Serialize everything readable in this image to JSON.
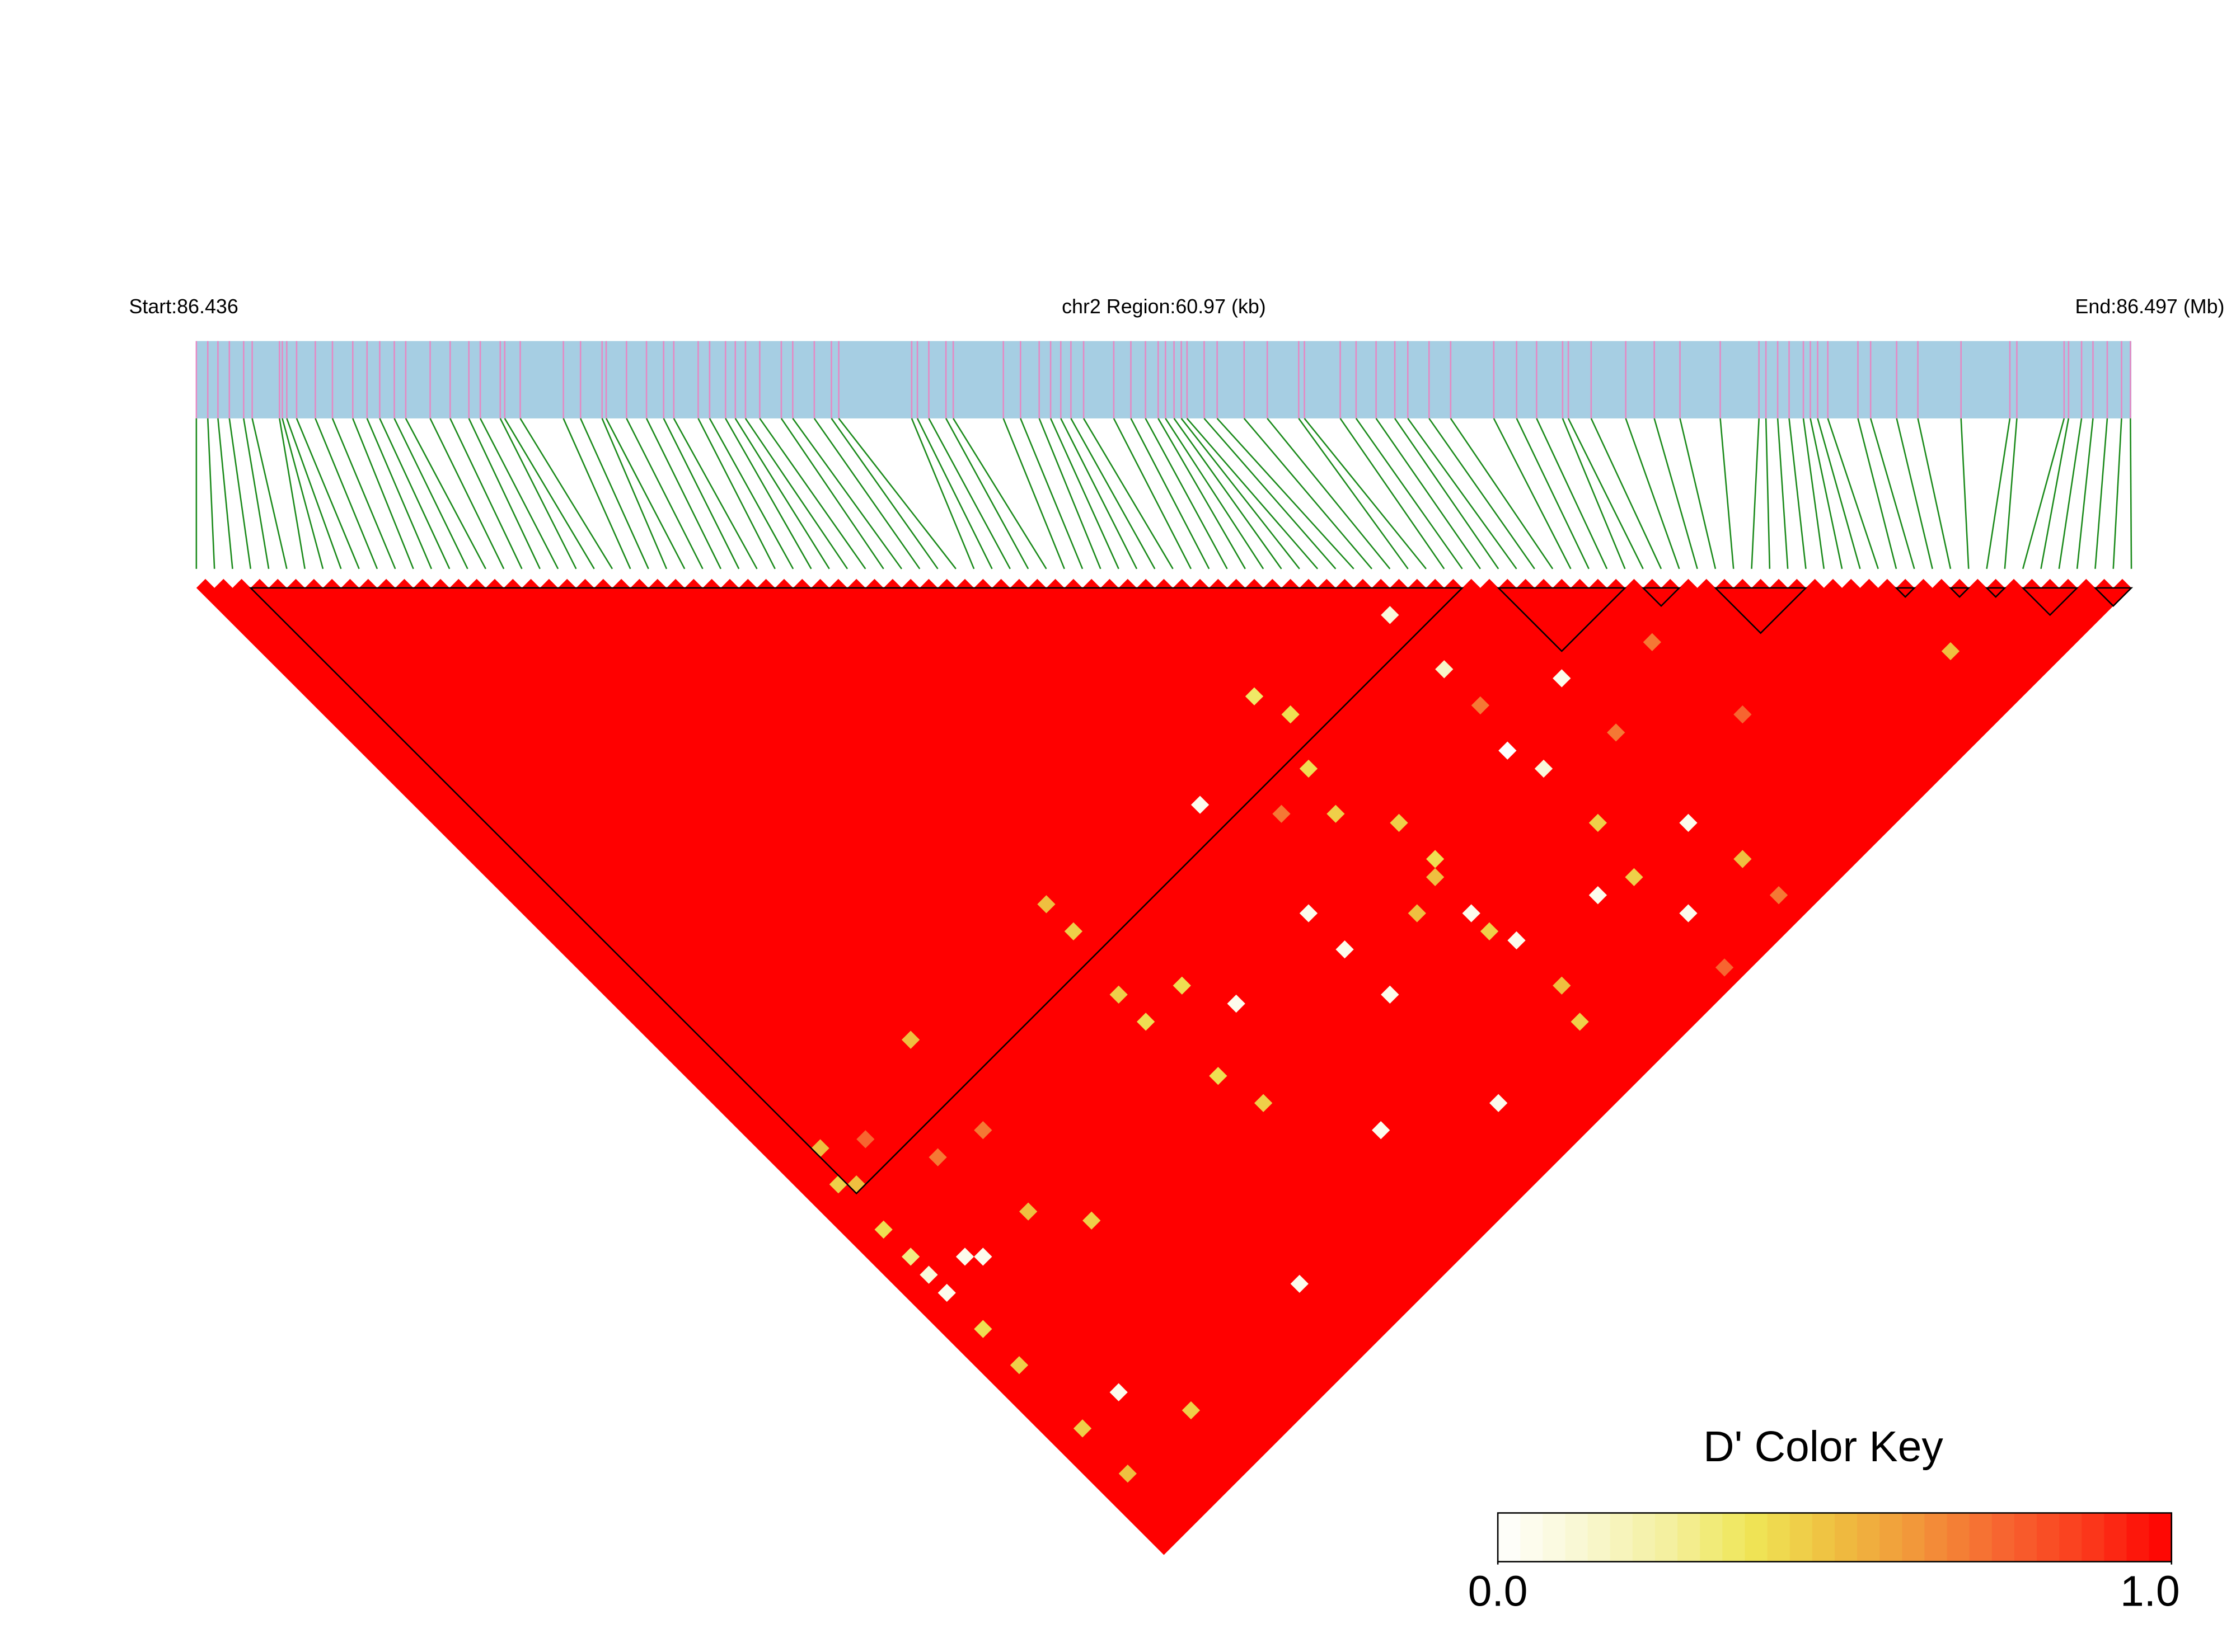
{
  "chart_data": {
    "type": "ld-heatmap",
    "start_label": "Start:86.436",
    "region_label": "chr2 Region:60.97 (kb)",
    "end_label": "End:86.497 (Mb)",
    "xlim": [
      86.436,
      86.497
    ],
    "track_color": "#a6cee3",
    "snp_color": "#e589c4",
    "connector_color": "#1a8a1a",
    "snp_positions": [
      86.436,
      86.43636,
      86.43668,
      86.43704,
      86.43749,
      86.43776,
      86.43862,
      86.43871,
      86.43885,
      86.43916,
      86.43975,
      86.44029,
      86.44093,
      86.44138,
      86.44178,
      86.44224,
      86.4426,
      86.44337,
      86.444,
      86.44459,
      86.44495,
      86.44558,
      86.44572,
      86.44621,
      86.44757,
      86.44811,
      86.44879,
      86.44892,
      86.44956,
      86.45019,
      86.45073,
      86.45105,
      86.45182,
      86.45218,
      86.45268,
      86.45299,
      86.45331,
      86.45376,
      86.45444,
      86.4548,
      86.45548,
      86.45602,
      86.45625,
      86.45855,
      86.45873,
      86.45909,
      86.45963,
      86.45986,
      86.46144,
      86.46198,
      86.46257,
      86.46293,
      86.46325,
      86.46357,
      86.46397,
      86.46492,
      86.46546,
      86.46592,
      86.46632,
      86.46655,
      86.46682,
      86.46705,
      86.46723,
      86.46777,
      86.46818,
      86.46903,
      86.46976,
      86.47075,
      86.47093,
      86.47206,
      86.47256,
      86.47319,
      86.47378,
      86.47419,
      86.47486,
      86.47554,
      86.4769,
      86.47762,
      86.47825,
      86.47907,
      86.47925,
      86.47997,
      86.48106,
      86.48196,
      86.48277,
      86.48404,
      86.48526,
      86.48548,
      86.48585,
      86.48621,
      86.48666,
      86.48688,
      86.48711,
      86.48743,
      86.48838,
      86.48878,
      86.4896,
      86.49027,
      86.49163,
      86.49317,
      86.49339,
      86.49488,
      86.49502,
      86.49543,
      86.49579,
      86.49624,
      86.49669,
      86.49697
    ],
    "cells": [
      {
        "i": 64,
        "j": 68,
        "value": 0.1
      },
      {
        "i": 70,
        "j": 81,
        "value": 0.05
      },
      {
        "i": 64,
        "j": 74,
        "value": 0.15
      },
      {
        "i": 63,
        "j": 82,
        "value": 0.0
      },
      {
        "i": 64,
        "j": 85,
        "value": 0.1
      },
      {
        "i": 52,
        "j": 65,
        "value": 0.35
      },
      {
        "i": 53,
        "j": 68,
        "value": 0.4
      },
      {
        "i": 43,
        "j": 68,
        "value": 0.05
      },
      {
        "i": 34,
        "j": 81,
        "value": 0.05
      },
      {
        "i": 32,
        "j": 77,
        "value": 0.4
      },
      {
        "i": 53,
        "j": 84,
        "value": 0.4
      },
      {
        "i": 43,
        "j": 89,
        "value": 0.05
      },
      {
        "i": 69,
        "j": 96,
        "value": 0.05
      },
      {
        "i": 70,
        "j": 101,
        "value": 0.5
      },
      {
        "i": 64,
        "j": 101,
        "value": 0.05
      },
      {
        "i": 93,
        "j": 101,
        "value": 0.5
      },
      {
        "i": 78,
        "j": 93,
        "value": 0.75
      },
      {
        "i": 70,
        "j": 105,
        "value": 0.7
      },
      {
        "i": 63,
        "j": 106,
        "value": 0.75
      },
      {
        "i": 52,
        "j": 101,
        "value": 0.45
      },
      {
        "i": 43,
        "j": 101,
        "value": 0.05
      },
      {
        "i": 35,
        "j": 96,
        "value": 0.05
      },
      {
        "i": 22,
        "j": 100,
        "value": 0.05
      },
      {
        "i": 14,
        "j": 65,
        "value": 0.5
      },
      {
        "i": 3,
        "j": 66,
        "value": 0.5
      },
      {
        "i": 2,
        "j": 69,
        "value": 0.45
      },
      {
        "i": 2,
        "j": 74,
        "value": 0.4
      },
      {
        "i": 2,
        "j": 77,
        "value": 0.3
      },
      {
        "i": 2,
        "j": 81,
        "value": 0.05
      },
      {
        "i": 2,
        "j": 85,
        "value": 0.4
      },
      {
        "i": 2,
        "j": 89,
        "value": 0.45
      },
      {
        "i": 2,
        "j": 96,
        "value": 0.45
      },
      {
        "i": 2,
        "j": 101,
        "value": 0.5
      },
      {
        "i": 6,
        "j": 96,
        "value": 0.05
      },
      {
        "i": 9,
        "j": 101,
        "value": 0.45
      },
      {
        "i": 6,
        "j": 81,
        "value": 0.05
      },
      {
        "i": 11,
        "j": 81,
        "value": 0.5
      },
      {
        "i": 14,
        "j": 85,
        "value": 0.45
      },
      {
        "i": 29,
        "j": 68,
        "value": 0.45
      },
      {
        "i": 29,
        "j": 65,
        "value": 0.5
      },
      {
        "i": 28,
        "j": 74,
        "value": 0.45
      },
      {
        "i": 28,
        "j": 77,
        "value": 0.4
      },
      {
        "i": 51,
        "j": 72,
        "value": 0.4
      },
      {
        "i": 53,
        "j": 80,
        "value": 0.45
      },
      {
        "i": 52,
        "j": 85,
        "value": 0.5
      },
      {
        "i": 52,
        "j": 89,
        "value": 0.05
      },
      {
        "i": 53,
        "j": 93,
        "value": 0.05
      },
      {
        "i": 43,
        "j": 84,
        "value": 0.05
      },
      {
        "i": 30,
        "j": 88,
        "value": 0.45
      },
      {
        "i": 29,
        "j": 84,
        "value": 0.4
      },
      {
        "i": 3,
        "j": 70,
        "value": 0.5
      },
      {
        "i": 2,
        "j": 79,
        "value": 0.1
      },
      {
        "i": 5,
        "j": 80,
        "value": 0.05
      },
      {
        "i": 6,
        "j": 68,
        "value": 0.75
      },
      {
        "i": 9,
        "j": 73,
        "value": 0.7
      },
      {
        "i": 13,
        "j": 74,
        "value": 0.7
      },
      {
        "i": 47,
        "j": 73,
        "value": 0.7
      },
      {
        "i": 64,
        "j": 78,
        "value": 0.7
      },
      {
        "i": 70,
        "j": 87,
        "value": 0.7
      },
      {
        "i": 77,
        "j": 84,
        "value": 0.7
      },
      {
        "i": 64,
        "j": 91,
        "value": 0.45
      },
      {
        "i": 63,
        "j": 96,
        "value": 0.45
      },
      {
        "i": 53,
        "j": 98,
        "value": 0.5
      },
      {
        "i": 50,
        "j": 76,
        "value": 0.45
      },
      {
        "i": 49,
        "j": 86,
        "value": 0.5
      },
      {
        "i": 43,
        "j": 80,
        "value": 0.05
      },
      {
        "i": 52,
        "j": 91,
        "value": 0.45
      },
      {
        "i": 60,
        "j": 95,
        "value": 0.05
      }
    ],
    "blocks": [
      [
        3,
        70
      ],
      [
        72,
        79
      ],
      [
        80,
        82
      ],
      [
        84,
        89
      ],
      [
        94,
        95
      ],
      [
        97,
        98
      ],
      [
        99,
        100
      ],
      [
        101,
        104
      ],
      [
        105,
        107
      ]
    ],
    "colorkey": {
      "title": "D' Color Key",
      "lim": [
        0,
        1
      ],
      "colors": [
        "#ffffff",
        "#f9f7d2",
        "#f4f0a0",
        "#efe657",
        "#efbf40",
        "#f2953a",
        "#f76530",
        "#fb3a1c",
        "#ff0000"
      ],
      "ticks": [
        {
          "value": 0,
          "label": "0.0"
        },
        {
          "value": 1,
          "label": "1.0"
        }
      ]
    }
  }
}
